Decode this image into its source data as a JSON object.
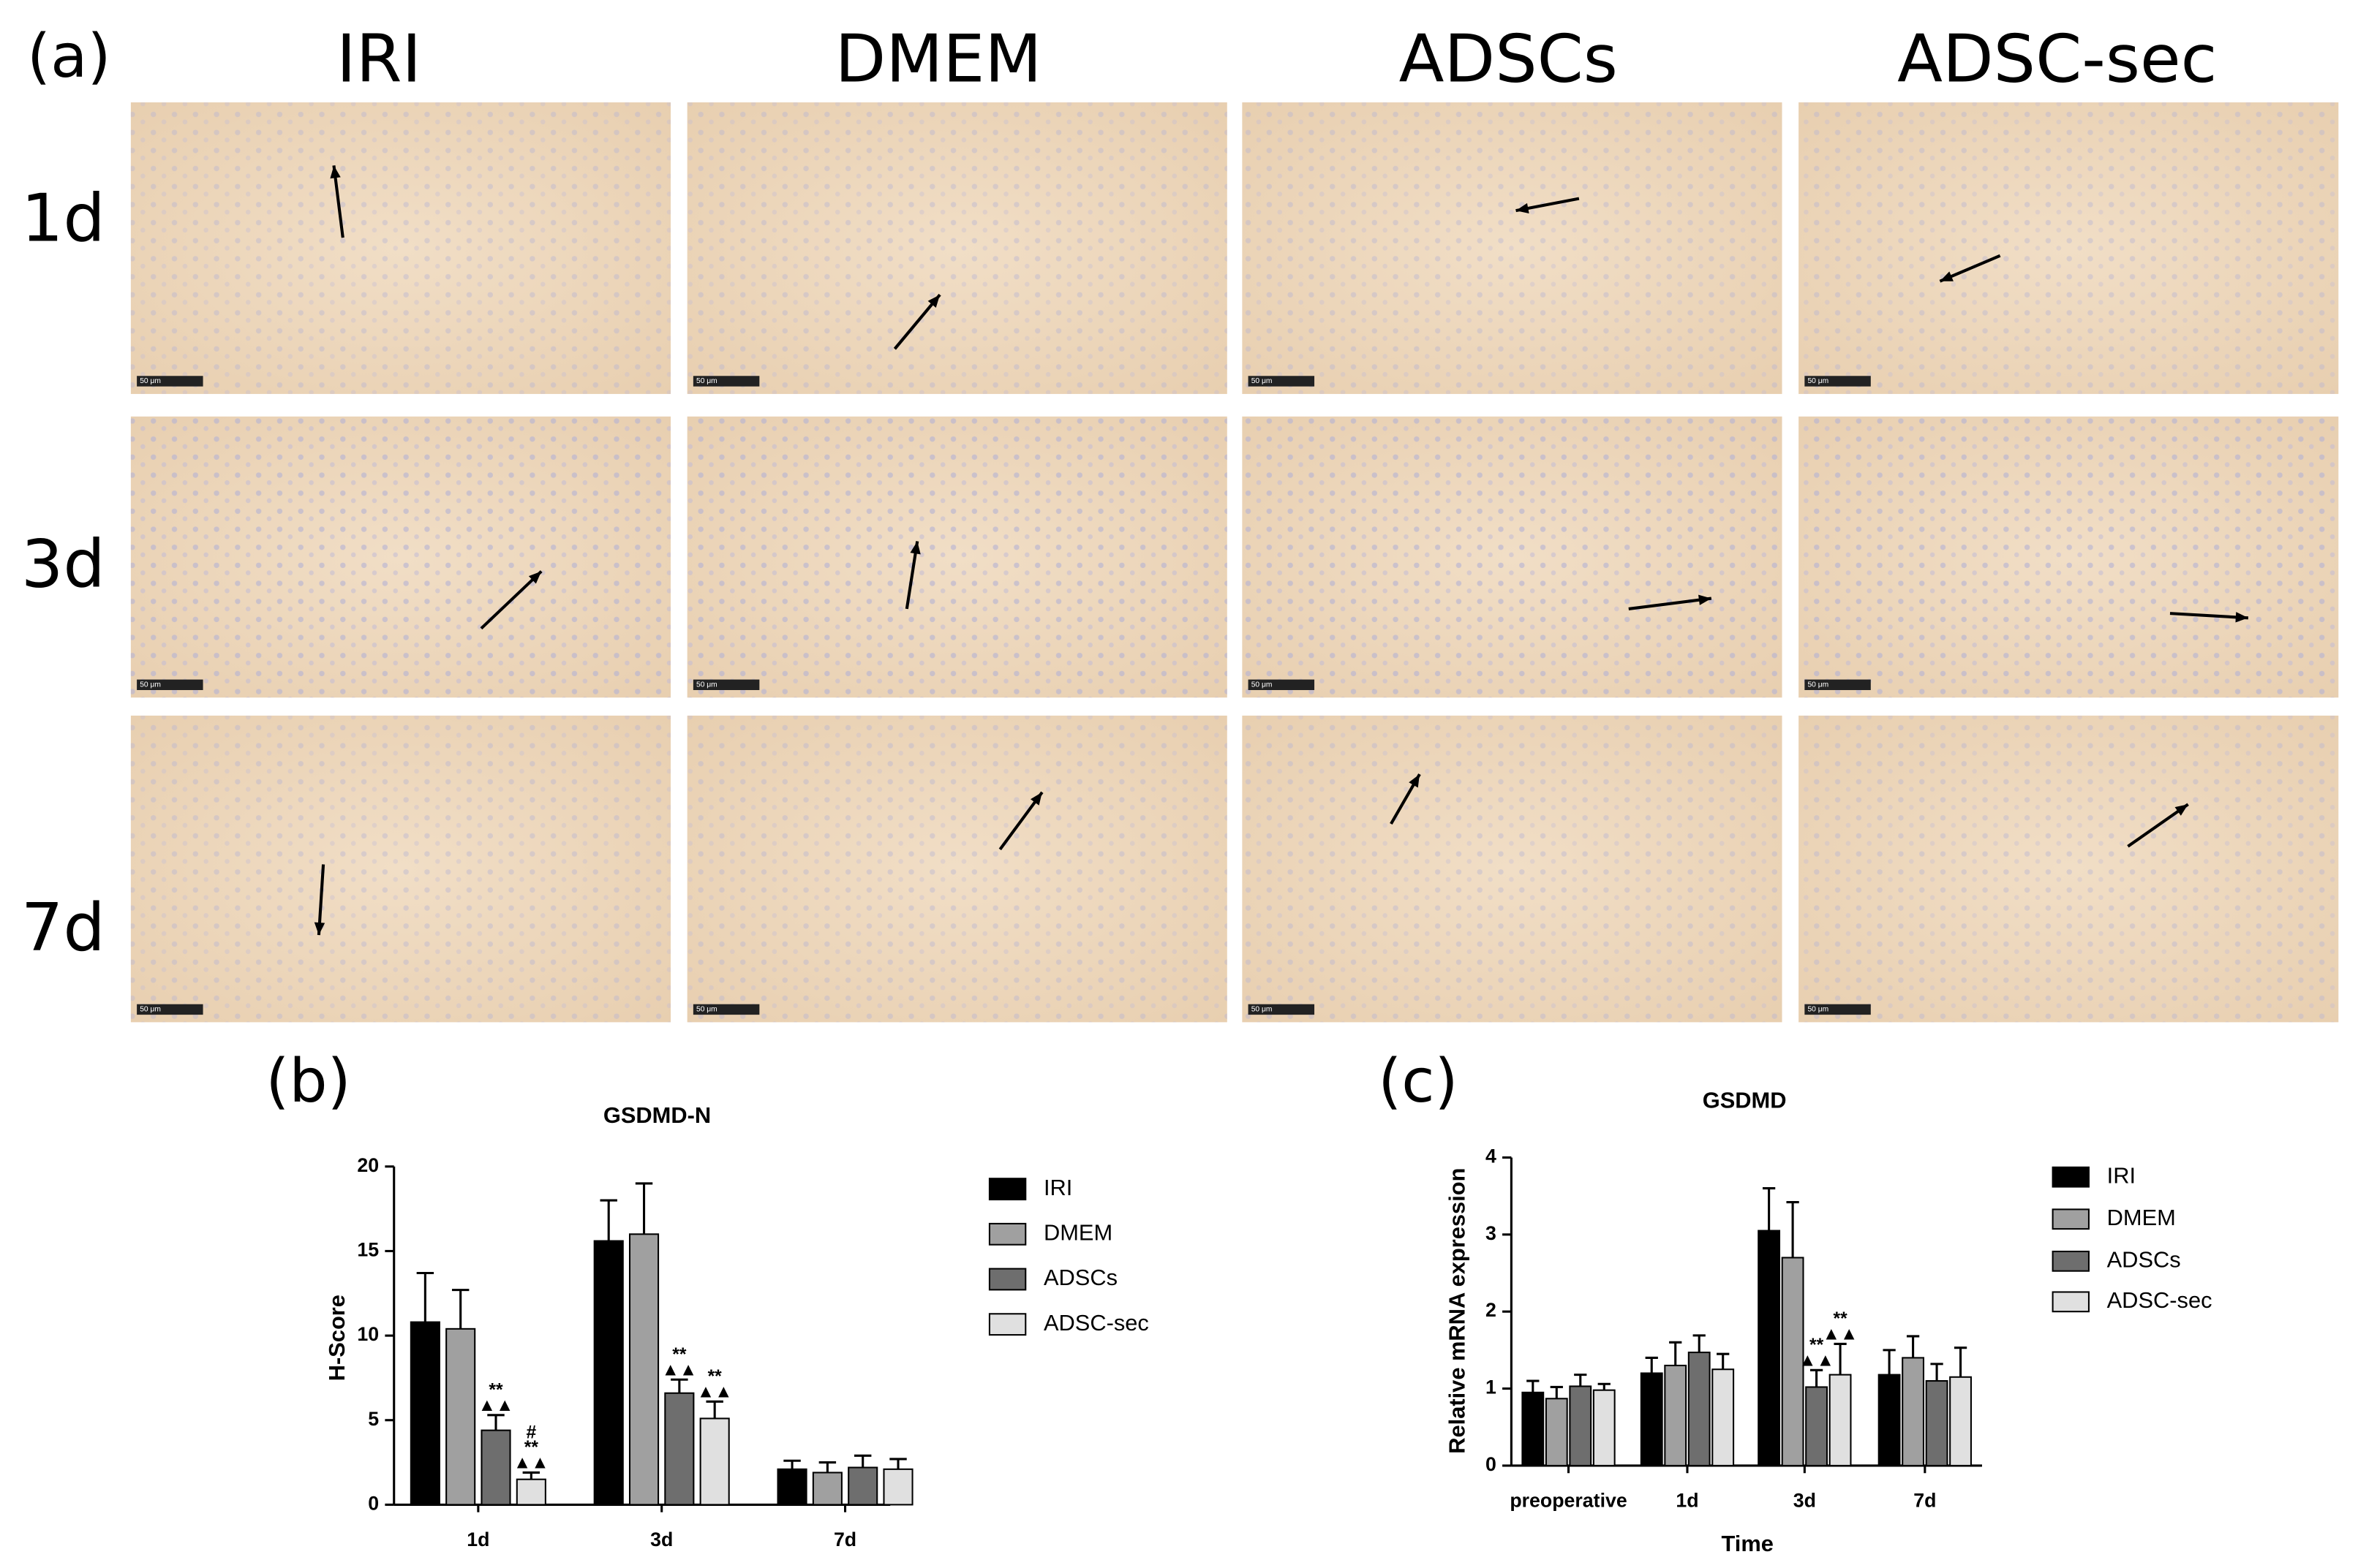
{
  "panel_a": {
    "label": "(a)",
    "columns": [
      "IRI",
      "DMEM",
      "ADSCs",
      "ADSC-sec"
    ],
    "rows": [
      "1d",
      "3d",
      "7d"
    ],
    "scale_bar": "50 μm"
  },
  "chart_data": [
    {
      "type": "bar",
      "label": "(b)",
      "title": "GSDMD-N",
      "y_label": "H-Score",
      "categories": [
        "1d",
        "3d",
        "7d"
      ],
      "series": [
        {
          "name": "IRI",
          "color": "#000000",
          "values": [
            10.8,
            15.6,
            2.1
          ],
          "errors": [
            2.9,
            2.4,
            0.5
          ],
          "annotations": [
            null,
            null,
            null
          ]
        },
        {
          "name": "DMEM",
          "color": "#a0a0a0",
          "values": [
            10.4,
            16.0,
            1.9
          ],
          "errors": [
            2.3,
            3.0,
            0.6
          ],
          "annotations": [
            null,
            null,
            null
          ]
        },
        {
          "name": "ADSCs",
          "color": "#6e6e6e",
          "values": [
            4.4,
            6.6,
            2.2
          ],
          "errors": [
            0.9,
            0.8,
            0.7
          ],
          "annotations": [
            [
              "**",
              "▲▲"
            ],
            [
              "**",
              "▲▲"
            ],
            null
          ]
        },
        {
          "name": "ADSC-sec",
          "color": "#e0e0e0",
          "values": [
            1.5,
            5.1,
            2.1
          ],
          "errors": [
            0.4,
            1.0,
            0.6
          ],
          "annotations": [
            [
              "#",
              "**",
              "▲▲"
            ],
            [
              "**",
              "▲▲"
            ],
            null
          ]
        }
      ],
      "ylim": [
        0,
        20
      ],
      "yticks": [
        0,
        5,
        10,
        15,
        20
      ]
    },
    {
      "type": "bar",
      "label": "(c)",
      "title": "GSDMD",
      "y_label": "Relative mRNA expression",
      "x_label": "Time",
      "categories": [
        "preoperative",
        "1d",
        "3d",
        "7d"
      ],
      "series": [
        {
          "name": "IRI",
          "color": "#000000",
          "values": [
            0.95,
            1.2,
            3.05,
            1.18
          ],
          "errors": [
            0.15,
            0.2,
            0.55,
            0.32
          ],
          "annotations": [
            null,
            null,
            null,
            null
          ]
        },
        {
          "name": "DMEM",
          "color": "#a0a0a0",
          "values": [
            0.87,
            1.3,
            2.7,
            1.4
          ],
          "errors": [
            0.15,
            0.3,
            0.72,
            0.28
          ],
          "annotations": [
            null,
            null,
            null,
            null
          ]
        },
        {
          "name": "ADSCs",
          "color": "#6e6e6e",
          "values": [
            1.03,
            1.47,
            1.02,
            1.1
          ],
          "errors": [
            0.15,
            0.22,
            0.22,
            0.22
          ],
          "annotations": [
            null,
            null,
            [
              "**",
              "▲▲"
            ],
            null
          ]
        },
        {
          "name": "ADSC-sec",
          "color": "#e0e0e0",
          "values": [
            0.98,
            1.25,
            1.18,
            1.15
          ],
          "errors": [
            0.08,
            0.2,
            0.4,
            0.38
          ],
          "annotations": [
            null,
            null,
            [
              "**",
              "▲▲"
            ],
            null
          ]
        }
      ],
      "ylim": [
        0,
        4
      ],
      "yticks": [
        0,
        1,
        2,
        3,
        4
      ]
    }
  ]
}
